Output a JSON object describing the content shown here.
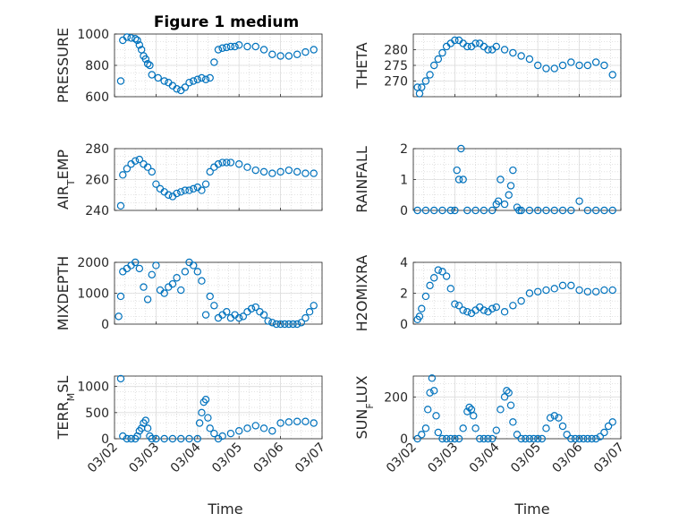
{
  "figure": {
    "title": "Figure 1 medium",
    "xlabel": "Time"
  },
  "x_ticks": [
    "03/02",
    "03/03",
    "03/04",
    "03/05",
    "03/06",
    "03/07"
  ],
  "marker_color": "#0072BD",
  "chart_data": [
    {
      "type": "scatter",
      "marker": "open-circle",
      "title": "Figure 1 medium",
      "xlabel": "",
      "ylabel": "PRESSURE",
      "xlim": [
        0,
        5
      ],
      "ylim": [
        600,
        1000
      ],
      "yticks": [
        600,
        800,
        1000
      ],
      "grid": true,
      "minor_grid": true,
      "x": [
        0.15,
        0.2,
        0.3,
        0.4,
        0.5,
        0.55,
        0.6,
        0.65,
        0.7,
        0.75,
        0.8,
        0.85,
        0.9,
        1.05,
        1.2,
        1.3,
        1.4,
        1.5,
        1.6,
        1.7,
        1.8,
        1.9,
        2.0,
        2.1,
        2.2,
        2.3,
        2.4,
        2.5,
        2.6,
        2.7,
        2.8,
        2.9,
        3.0,
        3.2,
        3.4,
        3.6,
        3.8,
        4.0,
        4.2,
        4.4,
        4.6,
        4.8
      ],
      "y": [
        700,
        960,
        980,
        975,
        970,
        960,
        930,
        900,
        860,
        840,
        810,
        800,
        740,
        720,
        700,
        690,
        670,
        650,
        640,
        660,
        690,
        700,
        710,
        720,
        710,
        720,
        820,
        900,
        910,
        915,
        920,
        920,
        930,
        920,
        920,
        900,
        870,
        860,
        860,
        870,
        885,
        900
      ]
    },
    {
      "type": "scatter",
      "marker": "open-circle",
      "ylabel": "THETA",
      "xlim": [
        0,
        5
      ],
      "ylim": [
        265,
        285
      ],
      "yticks": [
        270,
        275,
        280
      ],
      "grid": true,
      "minor_grid": true,
      "x": [
        0.1,
        0.15,
        0.2,
        0.3,
        0.4,
        0.5,
        0.6,
        0.7,
        0.8,
        0.9,
        1.0,
        1.1,
        1.2,
        1.3,
        1.4,
        1.5,
        1.6,
        1.7,
        1.8,
        1.9,
        2.0,
        2.2,
        2.4,
        2.6,
        2.8,
        3.0,
        3.2,
        3.4,
        3.6,
        3.8,
        4.0,
        4.2,
        4.4,
        4.6,
        4.8
      ],
      "y": [
        268,
        266,
        268,
        270,
        272,
        275,
        277,
        279,
        281,
        282,
        283,
        283,
        282,
        281,
        281,
        282,
        282,
        281,
        280,
        280,
        281,
        280,
        279,
        278,
        277,
        275,
        274,
        274,
        275,
        276,
        275,
        275,
        276,
        275,
        272
      ]
    },
    {
      "type": "scatter",
      "marker": "open-circle",
      "ylabel": "AIR_TEMP",
      "xlim": [
        0,
        5
      ],
      "ylim": [
        240,
        280
      ],
      "yticks": [
        240,
        260,
        280
      ],
      "grid": true,
      "minor_grid": true,
      "x": [
        0.15,
        0.2,
        0.3,
        0.4,
        0.5,
        0.6,
        0.7,
        0.8,
        0.9,
        1.0,
        1.1,
        1.2,
        1.3,
        1.4,
        1.5,
        1.6,
        1.7,
        1.8,
        1.9,
        2.0,
        2.1,
        2.2,
        2.3,
        2.4,
        2.5,
        2.6,
        2.7,
        2.8,
        3.0,
        3.2,
        3.4,
        3.6,
        3.8,
        4.0,
        4.2,
        4.4,
        4.6,
        4.8
      ],
      "y": [
        243,
        263,
        267,
        270,
        272,
        273,
        270,
        268,
        265,
        257,
        254,
        252,
        250,
        249,
        251,
        252,
        253,
        253,
        254,
        255,
        253,
        257,
        265,
        268,
        270,
        271,
        271,
        271,
        270,
        268,
        266,
        265,
        264,
        265,
        266,
        265,
        264,
        264
      ]
    },
    {
      "type": "scatter",
      "marker": "open-circle",
      "ylabel": "RAINFALL",
      "xlim": [
        0,
        5
      ],
      "ylim": [
        0,
        2
      ],
      "yticks": [
        0,
        1,
        2
      ],
      "grid": true,
      "minor_grid": true,
      "x": [
        0.1,
        0.3,
        0.5,
        0.7,
        0.9,
        1.0,
        1.05,
        1.1,
        1.15,
        1.2,
        1.3,
        1.5,
        1.7,
        1.9,
        2.0,
        2.05,
        2.1,
        2.2,
        2.3,
        2.35,
        2.4,
        2.5,
        2.55,
        2.6,
        2.8,
        3.0,
        3.2,
        3.4,
        3.6,
        3.8,
        4.0,
        4.2,
        4.4,
        4.6,
        4.8
      ],
      "y": [
        0,
        0,
        0,
        0,
        0,
        0,
        1.3,
        1.0,
        2.0,
        1.0,
        0,
        0,
        0,
        0,
        0.2,
        0.3,
        1.0,
        0.2,
        0.5,
        0.8,
        1.3,
        0.1,
        0,
        0,
        0,
        0,
        0,
        0,
        0,
        0,
        0.3,
        0,
        0,
        0,
        0
      ]
    },
    {
      "type": "scatter",
      "marker": "open-circle",
      "ylabel": "MIXDEPTH",
      "xlim": [
        0,
        5
      ],
      "ylim": [
        0,
        2000
      ],
      "yticks": [
        0,
        1000,
        2000
      ],
      "grid": true,
      "minor_grid": true,
      "x": [
        0.1,
        0.15,
        0.2,
        0.3,
        0.4,
        0.5,
        0.6,
        0.7,
        0.8,
        0.9,
        1.0,
        1.1,
        1.2,
        1.3,
        1.4,
        1.5,
        1.6,
        1.7,
        1.8,
        1.9,
        2.0,
        2.1,
        2.2,
        2.3,
        2.4,
        2.5,
        2.6,
        2.7,
        2.8,
        2.9,
        3.0,
        3.1,
        3.2,
        3.3,
        3.4,
        3.5,
        3.6,
        3.7,
        3.8,
        3.9,
        4.0,
        4.1,
        4.2,
        4.3,
        4.4,
        4.5,
        4.6,
        4.7,
        4.8
      ],
      "y": [
        250,
        900,
        1700,
        1800,
        1900,
        2000,
        1800,
        1200,
        800,
        1600,
        1900,
        1100,
        1000,
        1200,
        1300,
        1500,
        1100,
        1700,
        2000,
        1900,
        1700,
        1400,
        300,
        900,
        600,
        200,
        300,
        400,
        200,
        300,
        200,
        250,
        400,
        500,
        550,
        400,
        300,
        100,
        50,
        0,
        0,
        0,
        0,
        0,
        0,
        50,
        200,
        400,
        600
      ]
    },
    {
      "type": "scatter",
      "marker": "open-circle",
      "ylabel": "H2OMIXRA",
      "xlim": [
        0,
        5
      ],
      "ylim": [
        0,
        4
      ],
      "yticks": [
        0,
        2,
        4
      ],
      "grid": true,
      "minor_grid": true,
      "x": [
        0.1,
        0.15,
        0.2,
        0.3,
        0.4,
        0.5,
        0.6,
        0.7,
        0.8,
        0.9,
        1.0,
        1.1,
        1.2,
        1.3,
        1.4,
        1.5,
        1.6,
        1.7,
        1.8,
        1.9,
        2.0,
        2.2,
        2.4,
        2.6,
        2.8,
        3.0,
        3.2,
        3.4,
        3.6,
        3.8,
        4.0,
        4.2,
        4.4,
        4.6,
        4.8
      ],
      "y": [
        0.3,
        0.5,
        1.0,
        1.8,
        2.5,
        3.0,
        3.5,
        3.4,
        3.1,
        2.3,
        1.3,
        1.2,
        0.9,
        0.8,
        0.7,
        0.9,
        1.1,
        0.9,
        0.8,
        1.0,
        1.1,
        0.8,
        1.2,
        1.5,
        2.0,
        2.1,
        2.2,
        2.3,
        2.5,
        2.5,
        2.2,
        2.1,
        2.1,
        2.2,
        2.2
      ]
    },
    {
      "type": "scatter",
      "marker": "open-circle",
      "ylabel": "TERR_MSL",
      "xlim": [
        0,
        5
      ],
      "ylim": [
        0,
        1200
      ],
      "yticks": [
        0,
        500,
        1000
      ],
      "grid": true,
      "minor_grid": true,
      "x": [
        0.15,
        0.2,
        0.3,
        0.4,
        0.5,
        0.55,
        0.6,
        0.65,
        0.7,
        0.75,
        0.8,
        0.85,
        0.9,
        1.0,
        1.2,
        1.4,
        1.6,
        1.8,
        2.0,
        2.05,
        2.1,
        2.15,
        2.2,
        2.25,
        2.3,
        2.4,
        2.5,
        2.6,
        2.8,
        3.0,
        3.2,
        3.4,
        3.6,
        3.8,
        4.0,
        4.2,
        4.4,
        4.6,
        4.8
      ],
      "y": [
        1150,
        50,
        0,
        0,
        0,
        50,
        150,
        200,
        300,
        350,
        200,
        50,
        0,
        0,
        0,
        0,
        0,
        0,
        0,
        300,
        500,
        700,
        750,
        400,
        200,
        100,
        0,
        50,
        100,
        150,
        200,
        250,
        200,
        150,
        300,
        320,
        330,
        330,
        300
      ]
    },
    {
      "type": "scatter",
      "marker": "open-circle",
      "ylabel": "SUN_FLUX",
      "xlim": [
        0,
        5
      ],
      "ylim": [
        0,
        300
      ],
      "yticks": [
        0,
        200
      ],
      "grid": true,
      "minor_grid": true,
      "x": [
        0.1,
        0.2,
        0.3,
        0.35,
        0.4,
        0.45,
        0.5,
        0.55,
        0.6,
        0.7,
        0.8,
        0.9,
        1.0,
        1.1,
        1.2,
        1.3,
        1.35,
        1.4,
        1.45,
        1.5,
        1.6,
        1.7,
        1.8,
        1.9,
        2.0,
        2.1,
        2.2,
        2.25,
        2.3,
        2.35,
        2.4,
        2.5,
        2.6,
        2.7,
        2.8,
        2.9,
        3.0,
        3.1,
        3.2,
        3.3,
        3.4,
        3.5,
        3.6,
        3.7,
        3.8,
        3.9,
        4.0,
        4.1,
        4.2,
        4.3,
        4.4,
        4.5,
        4.6,
        4.7,
        4.8
      ],
      "y": [
        0,
        20,
        50,
        140,
        220,
        290,
        230,
        110,
        30,
        0,
        0,
        0,
        0,
        0,
        50,
        130,
        150,
        140,
        110,
        50,
        0,
        0,
        0,
        0,
        40,
        140,
        200,
        230,
        220,
        160,
        80,
        20,
        0,
        0,
        0,
        0,
        0,
        0,
        50,
        100,
        110,
        100,
        60,
        20,
        0,
        0,
        0,
        0,
        0,
        0,
        0,
        10,
        30,
        60,
        80
      ]
    }
  ]
}
